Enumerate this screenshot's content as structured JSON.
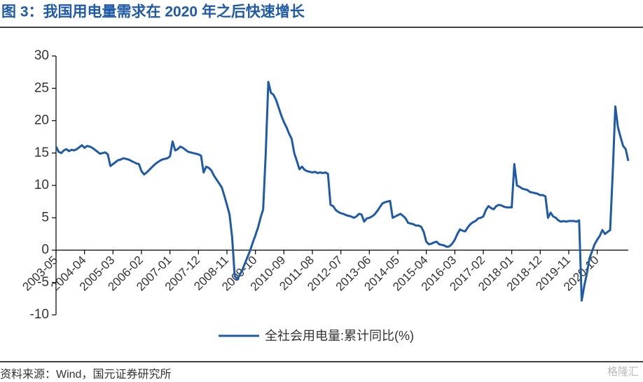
{
  "chart_data": {
    "type": "line",
    "title": "图 3：我国用电量需求在 2020 年之后快速增长",
    "source": "资料来源：Wind，国元证券研究所",
    "watermark": "格隆汇",
    "categories": [
      "2003-05",
      "2003-06",
      "2003-07",
      "2003-08",
      "2003-09",
      "2003-10",
      "2003-11",
      "2003-12",
      "2004-01",
      "2004-02",
      "2004-03",
      "2004-04",
      "2004-05",
      "2004-06",
      "2004-07",
      "2004-08",
      "2004-09",
      "2004-10",
      "2004-11",
      "2004-12",
      "2005-01",
      "2005-02",
      "2005-03",
      "2005-04",
      "2005-05",
      "2005-06",
      "2005-07",
      "2005-08",
      "2005-09",
      "2005-10",
      "2005-11",
      "2005-12",
      "2006-01",
      "2006-02",
      "2006-03",
      "2006-04",
      "2006-05",
      "2006-06",
      "2006-07",
      "2006-08",
      "2006-09",
      "2006-10",
      "2006-11",
      "2006-12",
      "2007-01",
      "2007-02",
      "2007-03",
      "2007-04",
      "2007-05",
      "2007-06",
      "2007-07",
      "2007-08",
      "2007-09",
      "2007-10",
      "2007-11",
      "2007-12",
      "2008-01",
      "2008-02",
      "2008-03",
      "2008-04",
      "2008-05",
      "2008-06",
      "2008-07",
      "2008-08",
      "2008-09",
      "2008-10",
      "2008-11",
      "2008-12",
      "2009-01",
      "2009-02",
      "2009-03",
      "2009-04",
      "2009-05",
      "2009-06",
      "2009-07",
      "2009-08",
      "2009-09",
      "2009-10",
      "2009-11",
      "2009-12",
      "2010-01",
      "2010-02",
      "2010-03",
      "2010-04",
      "2010-05",
      "2010-06",
      "2010-07",
      "2010-08",
      "2010-09",
      "2010-10",
      "2010-11",
      "2010-12",
      "2011-01",
      "2011-02",
      "2011-03",
      "2011-04",
      "2011-05",
      "2011-06",
      "2011-07",
      "2011-08",
      "2011-09",
      "2011-10",
      "2011-11",
      "2011-12",
      "2012-01",
      "2012-02",
      "2012-03",
      "2012-04",
      "2012-05",
      "2012-06",
      "2012-07",
      "2012-08",
      "2012-09",
      "2012-10",
      "2012-11",
      "2012-12",
      "2013-01",
      "2013-02",
      "2013-03",
      "2013-04",
      "2013-05",
      "2013-06",
      "2013-07",
      "2013-08",
      "2013-09",
      "2013-10",
      "2013-11",
      "2013-12",
      "2014-01",
      "2014-02",
      "2014-03",
      "2014-04",
      "2014-05",
      "2014-06",
      "2014-07",
      "2014-08",
      "2014-09",
      "2014-10",
      "2014-11",
      "2014-12",
      "2015-01",
      "2015-02",
      "2015-03",
      "2015-04",
      "2015-05",
      "2015-06",
      "2015-07",
      "2015-08",
      "2015-09",
      "2015-10",
      "2015-11",
      "2015-12",
      "2016-01",
      "2016-02",
      "2016-03",
      "2016-04",
      "2016-05",
      "2016-06",
      "2016-07",
      "2016-08",
      "2016-09",
      "2016-10",
      "2016-11",
      "2016-12",
      "2017-01",
      "2017-02",
      "2017-03",
      "2017-04",
      "2017-05",
      "2017-06",
      "2017-07",
      "2017-08",
      "2017-09",
      "2017-10",
      "2017-11",
      "2017-12",
      "2018-01",
      "2018-02",
      "2018-03",
      "2018-04",
      "2018-05",
      "2018-06",
      "2018-07",
      "2018-08",
      "2018-09",
      "2018-10",
      "2018-11",
      "2018-12",
      "2019-01",
      "2019-02",
      "2019-03",
      "2019-04",
      "2019-05",
      "2019-06",
      "2019-07",
      "2019-08",
      "2019-09",
      "2019-10",
      "2019-11",
      "2019-12",
      "2020-01",
      "2020-02",
      "2020-03",
      "2020-04",
      "2020-05",
      "2020-06",
      "2020-07",
      "2020-08",
      "2020-09",
      "2020-10",
      "2020-11",
      "2020-12",
      "2021-01",
      "2021-02",
      "2021-03",
      "2021-04",
      "2021-05",
      "2021-06",
      "2021-07",
      "2021-08",
      "2021-09",
      "2021-10"
    ],
    "series": [
      {
        "name": "全社会用电量:累计同比(%)",
        "color": "#1f5aa6",
        "values": [
          16.0,
          15.2,
          15.0,
          15.4,
          15.6,
          15.3,
          15.5,
          15.4,
          15.6,
          15.9,
          16.2,
          15.8,
          16.1,
          16.0,
          15.8,
          15.5,
          15.2,
          14.9,
          15.0,
          15.1,
          14.8,
          13.0,
          13.3,
          13.6,
          13.9,
          14.0,
          14.2,
          14.1,
          14.0,
          13.8,
          13.6,
          13.4,
          13.3,
          12.2,
          11.7,
          12.0,
          12.4,
          12.8,
          13.2,
          13.5,
          13.8,
          14.0,
          14.1,
          14.2,
          14.5,
          16.8,
          15.4,
          15.6,
          16.0,
          15.8,
          15.5,
          15.2,
          15.1,
          15.0,
          14.9,
          14.8,
          14.6,
          12.0,
          12.9,
          12.7,
          12.3,
          11.5,
          10.9,
          10.3,
          9.7,
          8.4,
          7.0,
          5.5,
          2.0,
          -4.0,
          -4.5,
          -3.8,
          -3.0,
          -2.0,
          -1.0,
          0.0,
          1.2,
          2.3,
          3.5,
          5.0,
          6.3,
          15.0,
          26.0,
          24.3,
          24.0,
          23.2,
          22.0,
          20.8,
          19.8,
          19.0,
          18.0,
          17.2,
          15.0,
          13.8,
          12.5,
          12.9,
          12.4,
          12.2,
          12.1,
          12.0,
          12.1,
          11.9,
          12.0,
          11.9,
          12.0,
          11.8,
          7.0,
          6.8,
          6.2,
          5.9,
          5.7,
          5.6,
          5.4,
          5.3,
          5.2,
          5.0,
          5.2,
          5.6,
          5.5,
          4.4,
          4.9,
          5.0,
          5.2,
          5.5,
          6.0,
          6.6,
          7.2,
          7.4,
          7.5,
          7.6,
          5.0,
          5.2,
          5.4,
          5.6,
          5.3,
          4.9,
          4.2,
          4.1,
          4.0,
          3.8,
          3.8,
          3.6,
          2.8,
          1.3,
          0.9,
          1.0,
          1.2,
          1.3,
          0.9,
          0.8,
          0.7,
          0.5,
          0.6,
          1.0,
          1.6,
          2.5,
          3.2,
          3.0,
          2.9,
          3.5,
          4.0,
          4.3,
          4.5,
          4.9,
          5.0,
          5.2,
          6.2,
          6.8,
          6.5,
          6.3,
          6.8,
          7.0,
          6.9,
          6.7,
          6.6,
          6.6,
          6.6,
          13.3,
          10.0,
          9.8,
          9.5,
          9.4,
          9.3,
          9.0,
          8.9,
          8.8,
          8.7,
          8.5,
          8.5,
          8.3,
          5.0,
          5.8,
          5.2,
          5.0,
          4.6,
          4.4,
          4.5,
          4.4,
          4.5,
          4.5,
          4.5,
          4.4,
          4.6,
          -7.8,
          -5.5,
          -3.6,
          -1.3,
          -0.2,
          0.9,
          1.6,
          2.2,
          3.1,
          2.5,
          2.8,
          3.1,
          12.0,
          22.2,
          19.0,
          17.5,
          16.1,
          15.6,
          13.8
        ]
      }
    ],
    "xticks": [
      "2003-05",
      "2004-04",
      "2005-03",
      "2006-02",
      "2007-01",
      "2007-12",
      "2008-11",
      "2009-10",
      "2010-09",
      "2011-08",
      "2012-07",
      "2013-06",
      "2014-05",
      "2015-04",
      "2016-03",
      "2017-02",
      "2018-01",
      "2018-12",
      "2019-11",
      "2020-10"
    ],
    "ylim": [
      -10,
      30
    ],
    "yticks": [
      -10,
      -5,
      0,
      5,
      10,
      15,
      20,
      25,
      30
    ]
  }
}
